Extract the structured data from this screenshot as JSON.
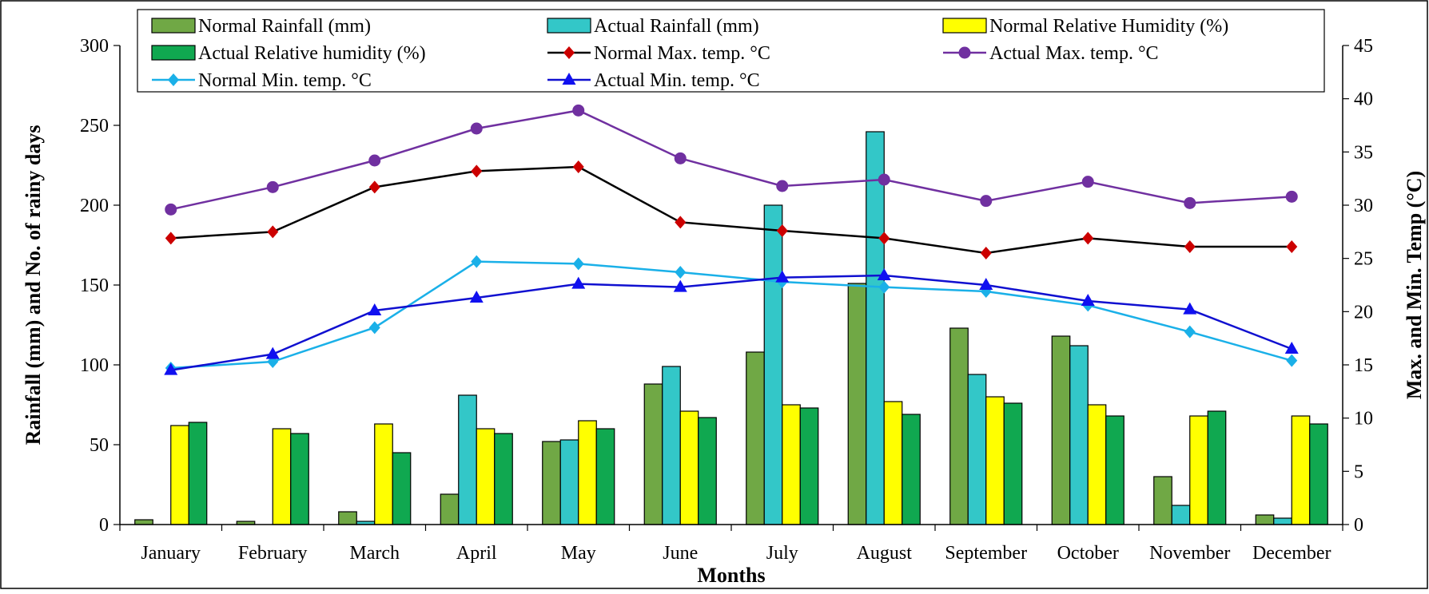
{
  "chart_data": {
    "type": "bar",
    "title": "",
    "xlabel": "Months",
    "ylabel_left": "Rainfall (mm) and No. of rainy days",
    "ylabel_right": "Max. and Min. Temp (°C)",
    "ylim_left": [
      0,
      300
    ],
    "yticks_left": [
      0,
      50,
      100,
      150,
      200,
      250,
      300
    ],
    "ylim_right": [
      0,
      45
    ],
    "yticks_right": [
      0,
      5,
      10,
      15,
      20,
      25,
      30,
      35,
      40,
      45
    ],
    "legend_position": "top",
    "grid": false,
    "categories": [
      "January",
      "February",
      "March",
      "April",
      "May",
      "June",
      "July",
      "August",
      "September",
      "October",
      "November",
      "December"
    ],
    "bar_series": [
      {
        "name": "Normal Rainfall (mm)",
        "color": "#70a845",
        "values": [
          3,
          2,
          8,
          19,
          52,
          88,
          108,
          151,
          123,
          118,
          30,
          6
        ]
      },
      {
        "name": "Actual Rainfall (mm)",
        "color": "#33c7c8",
        "values": [
          0,
          0,
          2,
          81,
          53,
          99,
          200,
          246,
          94,
          112,
          12,
          4
        ]
      },
      {
        "name": "Normal Relative Humidity (%)",
        "color": "#ffff00",
        "values": [
          62,
          60,
          63,
          60,
          65,
          71,
          75,
          77,
          80,
          75,
          68,
          68
        ]
      },
      {
        "name": "Actual Relative humidity (%)",
        "color": "#10a850",
        "values": [
          64,
          57,
          45,
          57,
          60,
          67,
          73,
          69,
          76,
          68,
          71,
          63
        ]
      }
    ],
    "line_series": [
      {
        "name": "Normal Max. temp. °C",
        "color": "#000000",
        "marker": "diamond",
        "marker_color": "#cc0000",
        "values": [
          26.9,
          27.5,
          31.7,
          33.2,
          33.6,
          28.4,
          27.6,
          26.9,
          25.5,
          26.9,
          26.1,
          26.1
        ]
      },
      {
        "name": "Actual Max. temp. °C",
        "color": "#7030a0",
        "marker": "circle",
        "marker_color": "#7030a0",
        "values": [
          29.6,
          31.7,
          34.2,
          37.2,
          38.9,
          34.4,
          31.8,
          32.4,
          30.4,
          32.2,
          30.2,
          30.8
        ]
      },
      {
        "name": "Normal Min. temp. °C",
        "color": "#1ab0e8",
        "marker": "diamond",
        "marker_color": "#1ab0e8",
        "values": [
          14.7,
          15.3,
          18.5,
          24.7,
          24.5,
          23.7,
          22.8,
          22.3,
          21.9,
          20.6,
          18.1,
          15.4
        ]
      },
      {
        "name": "Actual Min. temp. °C",
        "color": "#1010d0",
        "marker": "triangle",
        "marker_color": "#1010f0",
        "values": [
          14.5,
          16.0,
          20.1,
          21.3,
          22.6,
          22.3,
          23.2,
          23.4,
          22.5,
          21.0,
          20.2,
          16.5
        ]
      }
    ]
  }
}
